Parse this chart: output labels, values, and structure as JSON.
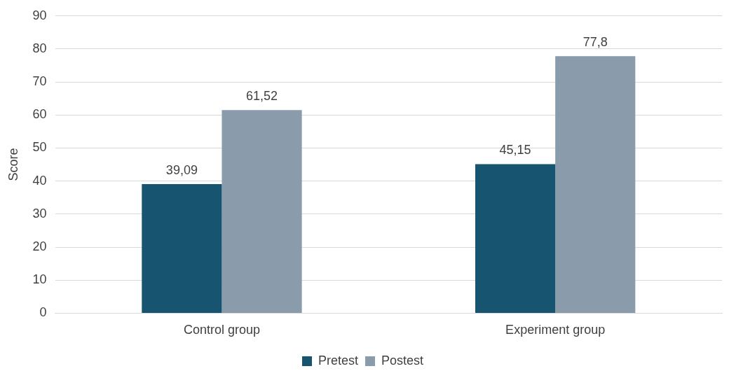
{
  "chart_data": {
    "type": "bar",
    "ylabel": "Score",
    "categories": [
      "Control group",
      "Experiment group"
    ],
    "series": [
      {
        "name": "Pretest",
        "color": "#16546f",
        "values": [
          39.09,
          45.15
        ],
        "value_labels": [
          "39,09",
          "45,15"
        ]
      },
      {
        "name": "Postest",
        "color": "#8a9bab",
        "values": [
          61.52,
          77.8
        ],
        "value_labels": [
          "61,52",
          "77,8"
        ]
      }
    ],
    "ylim": [
      0,
      90
    ],
    "yticks": [
      0,
      10,
      20,
      30,
      40,
      50,
      60,
      70,
      80,
      90
    ],
    "grid": "y",
    "legend": "bottom"
  }
}
